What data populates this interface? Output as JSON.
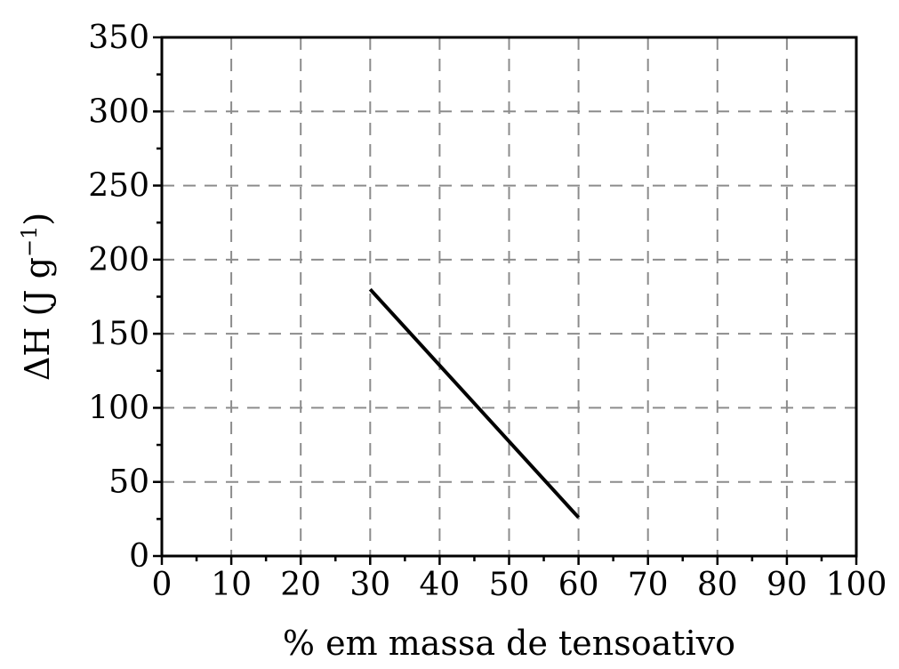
{
  "chart_data": {
    "type": "line",
    "xlabel": "% em massa de tensoativo",
    "ylabel": "ΔH (J g",
    "ylabel_sup": "−1",
    "ylabel_close": ")",
    "xlim": [
      0,
      100
    ],
    "ylim": [
      0,
      350
    ],
    "xticks": [
      0,
      10,
      20,
      30,
      40,
      50,
      60,
      70,
      80,
      90,
      100
    ],
    "yticks": [
      0,
      50,
      100,
      150,
      200,
      250,
      300,
      350
    ],
    "grid": true,
    "series": [
      {
        "x": [
          30,
          60
        ],
        "y": [
          180,
          26
        ],
        "color": "#000000"
      }
    ]
  }
}
